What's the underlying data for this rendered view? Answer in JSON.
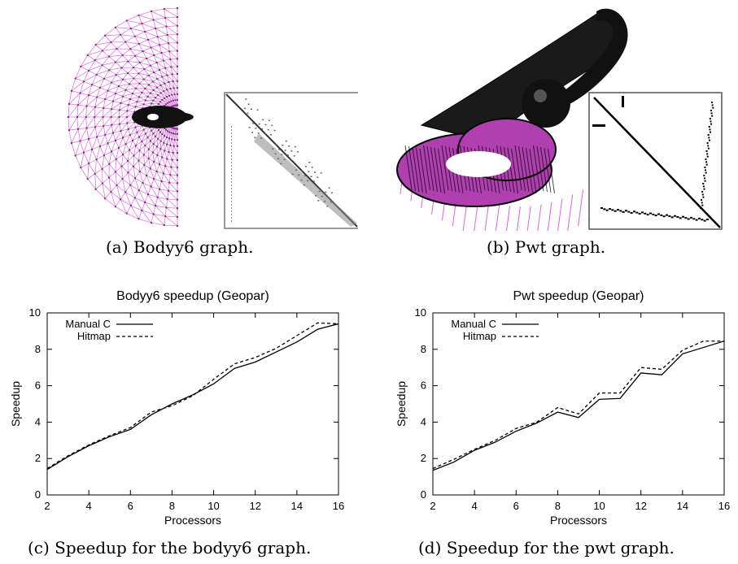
{
  "figures": {
    "a": {
      "caption_tag": "(a)",
      "caption_text": "Bodyy6 graph.",
      "graph_color": "#e07be0",
      "matrix_color": "#555555"
    },
    "b": {
      "caption_tag": "(b)",
      "caption_text": "Pwt graph.",
      "graph_color": "#b040b0",
      "matrix_color": "#000000"
    },
    "c": {
      "caption_tag": "(c)",
      "caption_text": "Speedup for the bodyy6 graph."
    },
    "d": {
      "caption_tag": "(d)",
      "caption_text": "Speedup for the pwt graph."
    }
  },
  "chart_data": [
    {
      "type": "line",
      "title": "Bodyy6 speedup (Geopar)",
      "xlabel": "Processors",
      "ylabel": "Speedup",
      "xlim": [
        2,
        16
      ],
      "ylim": [
        0,
        10
      ],
      "xticks": [
        2,
        4,
        6,
        8,
        10,
        12,
        14,
        16
      ],
      "yticks": [
        0,
        2,
        4,
        6,
        8,
        10
      ],
      "legend_position": "top-left",
      "x": [
        2,
        3,
        4,
        5,
        6,
        7,
        8,
        9,
        10,
        11,
        12,
        13,
        14,
        15,
        16
      ],
      "series": [
        {
          "name": "Manual C",
          "style": "solid",
          "values": [
            1.4,
            2.1,
            2.7,
            3.2,
            3.6,
            4.4,
            5.0,
            5.5,
            6.1,
            6.95,
            7.3,
            7.85,
            8.4,
            9.1,
            9.4
          ]
        },
        {
          "name": "Hitmap",
          "style": "dashed",
          "values": [
            1.45,
            2.15,
            2.75,
            3.25,
            3.7,
            4.55,
            4.9,
            5.45,
            6.35,
            7.2,
            7.55,
            8.05,
            8.75,
            9.45,
            9.4
          ]
        }
      ]
    },
    {
      "type": "line",
      "title": "Pwt speedup (Geopar)",
      "xlabel": "Processors",
      "ylabel": "Speedup",
      "xlim": [
        2,
        16
      ],
      "ylim": [
        0,
        10
      ],
      "xticks": [
        2,
        4,
        6,
        8,
        10,
        12,
        14,
        16
      ],
      "yticks": [
        0,
        2,
        4,
        6,
        8,
        10
      ],
      "legend_position": "top-left",
      "x": [
        2,
        3,
        4,
        5,
        6,
        7,
        8,
        9,
        10,
        11,
        12,
        13,
        14,
        15,
        16
      ],
      "series": [
        {
          "name": "Manual C",
          "style": "solid",
          "values": [
            1.35,
            1.8,
            2.45,
            2.9,
            3.5,
            3.95,
            4.55,
            4.25,
            5.25,
            5.3,
            6.7,
            6.6,
            7.75,
            8.1,
            8.45
          ]
        },
        {
          "name": "Hitmap",
          "style": "dashed",
          "values": [
            1.45,
            1.95,
            2.5,
            3.0,
            3.65,
            4.0,
            4.8,
            4.45,
            5.6,
            5.6,
            7.0,
            6.9,
            7.95,
            8.45,
            8.45
          ]
        }
      ]
    }
  ]
}
